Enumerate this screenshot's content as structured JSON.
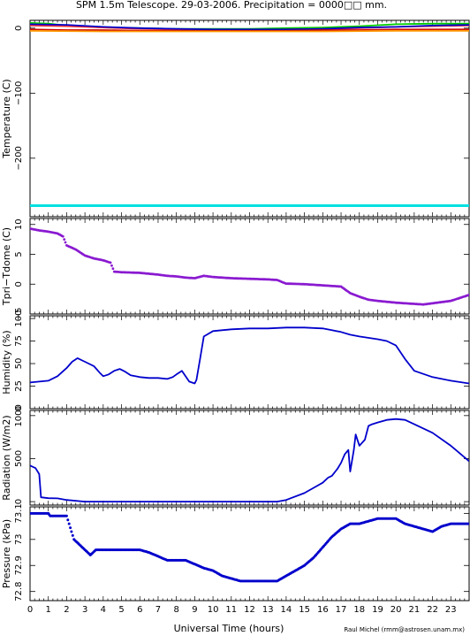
{
  "title": "SPM 1.5m Telescope. 29-03-2006. Precipitation = 0000□□ mm.",
  "xlabel": "Universal Time (hours)",
  "credit": "Raul Michel (rmm@astrosen.unam.mx)",
  "x_ticks": [
    "0",
    "1",
    "2",
    "3",
    "4",
    "5",
    "6",
    "7",
    "8",
    "9",
    "10",
    "11",
    "12",
    "13",
    "14",
    "15",
    "16",
    "17",
    "18",
    "19",
    "20",
    "21",
    "22",
    "23"
  ],
  "chart_data": [
    {
      "type": "line",
      "ylabel": "Temperature (C)",
      "ylim": [
        -290,
        12
      ],
      "yticks": [
        {
          "v": 0,
          "label": "0"
        },
        {
          "v": -100,
          "label": "−100"
        },
        {
          "v": -200,
          "label": "−200"
        }
      ],
      "xlim": [
        0,
        24
      ],
      "series": [
        {
          "color": "#00cc00",
          "x": [
            0,
            1,
            2,
            4,
            6,
            8,
            10,
            12,
            14,
            16,
            18,
            20,
            22,
            24
          ],
          "y": [
            8,
            7,
            4,
            1,
            0,
            -1,
            -1,
            -1,
            0,
            1,
            3,
            6,
            7,
            7
          ]
        },
        {
          "color": "#ff3030",
          "x": [
            0,
            2,
            4,
            6,
            8,
            10,
            12,
            14,
            16,
            18,
            20,
            22,
            24
          ],
          "y": [
            4,
            3,
            1,
            -1,
            -2,
            -3,
            -3,
            -2,
            -1,
            0,
            2,
            3,
            4
          ]
        },
        {
          "color": "#0000cc",
          "x": [
            0,
            2,
            4,
            6,
            8,
            10,
            12,
            14,
            16,
            18,
            20,
            22,
            24
          ],
          "y": [
            6,
            5,
            2,
            0,
            -1,
            -2,
            -2,
            -2,
            -1,
            1,
            2,
            4,
            5
          ]
        },
        {
          "color": "#cc0000",
          "x": [
            0,
            2,
            4,
            6,
            8,
            10,
            12,
            14,
            16,
            18,
            20,
            22,
            24
          ],
          "y": [
            -2,
            -3,
            -3,
            -4,
            -4,
            -4,
            -4,
            -4,
            -3,
            -3,
            -2,
            -2,
            -2
          ]
        },
        {
          "color": "#ff9900",
          "x": [
            0,
            4,
            8,
            12,
            16,
            20,
            24
          ],
          "y": [
            -4,
            -5,
            -5,
            -5,
            -5,
            -4,
            -4
          ]
        },
        {
          "color": "#00e0e0",
          "x": [
            0,
            24
          ],
          "y": [
            -273,
            -273
          ]
        }
      ]
    },
    {
      "type": "scatter",
      "ylabel": "Tpri−Tdome (C)",
      "ylim": [
        -5,
        11
      ],
      "yticks": [
        {
          "v": 10,
          "label": "10"
        },
        {
          "v": 5,
          "label": "5"
        },
        {
          "v": 0,
          "label": "0"
        },
        {
          "v": -5,
          "label": "−5"
        }
      ],
      "xlim": [
        0,
        24
      ],
      "series": [
        {
          "color": "#8a1ad0",
          "x": [
            0,
            0.5,
            1.0,
            1.5,
            1.8,
            2.0,
            2.5,
            3.0,
            3.5,
            4.0,
            4.4,
            4.6,
            5.0,
            6.0,
            7.0,
            7.5,
            8.0,
            8.5,
            9.0,
            9.5,
            10.0,
            11.0,
            12.0,
            13.0,
            13.5,
            14.0,
            15.0,
            16.0,
            17.0,
            17.5,
            18.0,
            18.5,
            19.0,
            20.0,
            21.0,
            21.5,
            22.0,
            23.0,
            24.0
          ],
          "y": [
            9.3,
            9.0,
            8.8,
            8.5,
            8.0,
            6.5,
            5.8,
            4.8,
            4.3,
            4.0,
            3.6,
            2.1,
            2.0,
            1.9,
            1.6,
            1.4,
            1.3,
            1.1,
            1.0,
            1.4,
            1.2,
            1.0,
            0.9,
            0.8,
            0.7,
            0.1,
            0.0,
            -0.2,
            -0.4,
            -1.5,
            -2.1,
            -2.6,
            -2.8,
            -3.1,
            -3.3,
            -3.4,
            -3.2,
            -2.8,
            -1.8
          ]
        }
      ]
    },
    {
      "type": "line",
      "ylabel": "Humidity (%)",
      "ylim": [
        0,
        103
      ],
      "yticks": [
        {
          "v": 100,
          "label": "100"
        },
        {
          "v": 75,
          "label": "75"
        },
        {
          "v": 50,
          "label": "50"
        },
        {
          "v": 25,
          "label": "25"
        },
        {
          "v": 0,
          "label": "0"
        }
      ],
      "xlim": [
        0,
        24
      ],
      "series": [
        {
          "color": "#0000cc",
          "x": [
            0,
            0.5,
            1.0,
            1.5,
            2.0,
            2.3,
            2.6,
            2.9,
            3.2,
            3.5,
            3.8,
            4.0,
            4.3,
            4.6,
            4.9,
            5.2,
            5.5,
            6.0,
            6.5,
            7.0,
            7.5,
            7.8,
            8.0,
            8.3,
            8.5,
            8.7,
            9.0,
            9.1,
            9.3,
            9.5,
            10.0,
            11.0,
            12.0,
            13.0,
            14.0,
            15.0,
            16.0,
            16.5,
            17.0,
            17.5,
            18.0,
            19.0,
            19.5,
            20.0,
            20.5,
            21.0,
            22.0,
            23.0,
            24.0
          ],
          "y": [
            29,
            30,
            31,
            36,
            45,
            52,
            56,
            53,
            50,
            47,
            40,
            36,
            38,
            42,
            44,
            41,
            37,
            35,
            34,
            34,
            33,
            35,
            38,
            42,
            36,
            30,
            28,
            32,
            56,
            80,
            86,
            88,
            89,
            89,
            90,
            90,
            89,
            87,
            85,
            82,
            80,
            77,
            75,
            70,
            55,
            42,
            35,
            31,
            28
          ]
        }
      ]
    },
    {
      "type": "line",
      "ylabel": "Radiation (W/m2)",
      "ylim": [
        -40,
        1060
      ],
      "yticks": [
        {
          "v": 1000,
          "label": "1000"
        },
        {
          "v": 500,
          "label": "500"
        },
        {
          "v": 0,
          "label": "0"
        }
      ],
      "xlim": [
        0,
        24
      ],
      "series": [
        {
          "color": "#0000cc",
          "x": [
            0,
            0.3,
            0.5,
            0.6,
            1.0,
            1.5,
            2.0,
            3.0,
            13.5,
            14.0,
            15.0,
            15.5,
            16.0,
            16.3,
            16.5,
            16.8,
            17.0,
            17.2,
            17.4,
            17.5,
            17.7,
            17.8,
            18.0,
            18.3,
            18.5,
            18.7,
            19.0,
            19.5,
            20.0,
            20.5,
            21.0,
            22.0,
            23.0,
            24.0
          ],
          "y": [
            420,
            390,
            320,
            50,
            40,
            38,
            20,
            0,
            0,
            20,
            100,
            160,
            220,
            280,
            300,
            380,
            450,
            550,
            600,
            350,
            600,
            780,
            650,
            720,
            880,
            900,
            920,
            950,
            960,
            950,
            900,
            800,
            650,
            470
          ]
        }
      ]
    },
    {
      "type": "scatter",
      "ylabel": "Pressure (kPa)",
      "ylim": [
        72.765,
        73.125
      ],
      "yticks": [
        {
          "v": 73.1,
          "label": "73.1"
        },
        {
          "v": 73.0,
          "label": "73"
        },
        {
          "v": 72.9,
          "label": "72.9"
        },
        {
          "v": 72.8,
          "label": "72.8"
        }
      ],
      "xlim": [
        0,
        24
      ],
      "series": [
        {
          "color": "#0000cc",
          "x": [
            0,
            1.0,
            1.1,
            2.0,
            2.4,
            3.0,
            3.3,
            3.6,
            4.5,
            6.0,
            6.5,
            7.5,
            8.5,
            9.5,
            10.0,
            10.5,
            11.5,
            13.5,
            14.0,
            14.5,
            15.0,
            15.5,
            16.0,
            16.5,
            17.0,
            17.5,
            18.0,
            19.0,
            20.0,
            20.5,
            21.5,
            22.0,
            22.5,
            23.0,
            23.5,
            24.0
          ],
          "y": [
            73.1,
            73.1,
            73.09,
            73.09,
            73.0,
            72.96,
            72.94,
            72.96,
            72.96,
            72.96,
            72.95,
            72.92,
            72.92,
            72.89,
            72.88,
            72.86,
            72.84,
            72.84,
            72.86,
            72.88,
            72.9,
            72.93,
            72.97,
            73.01,
            73.04,
            73.06,
            73.06,
            73.08,
            73.08,
            73.06,
            73.04,
            73.03,
            73.05,
            73.06,
            73.06,
            73.06
          ]
        }
      ]
    }
  ]
}
